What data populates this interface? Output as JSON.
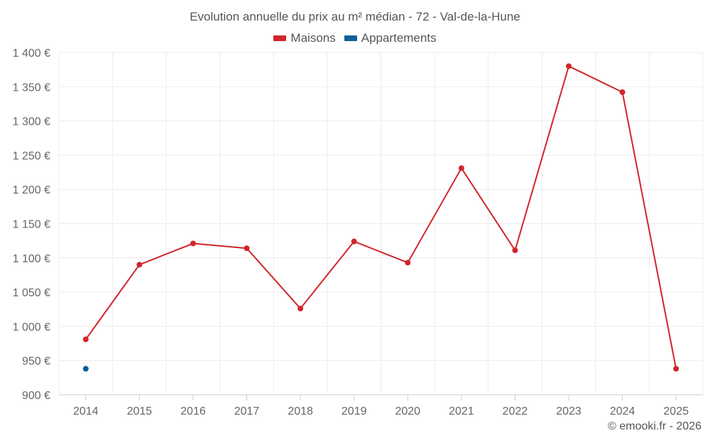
{
  "chart_data": {
    "type": "line",
    "title": "Evolution annuelle du prix au m² médian - 72 - Val-de-la-Hune",
    "categories": [
      "2014",
      "2015",
      "2016",
      "2017",
      "2018",
      "2019",
      "2020",
      "2021",
      "2022",
      "2023",
      "2024",
      "2025"
    ],
    "series": [
      {
        "name": "Maisons",
        "color": "#d0262b",
        "values": [
          981,
          1090,
          1121,
          1114,
          1026,
          1124,
          1093,
          1231,
          1111,
          1380,
          1342,
          938
        ]
      },
      {
        "name": "Appartements",
        "color": "#0b6196",
        "values": [
          938,
          null,
          null,
          null,
          null,
          null,
          null,
          null,
          null,
          null,
          null,
          null
        ]
      }
    ],
    "ylim": [
      900,
      1400
    ],
    "yticks": [
      900,
      950,
      1000,
      1050,
      1100,
      1150,
      1200,
      1250,
      1300,
      1350,
      1400
    ],
    "ytick_labels": [
      "900 €",
      "950 €",
      "1 000 €",
      "1 050 €",
      "1 100 €",
      "1 150 €",
      "1 200 €",
      "1 250 €",
      "1 300 €",
      "1 350 €",
      "1 400 €"
    ],
    "grid": true,
    "legend_position": "top-center"
  },
  "credit": "© emooki.fr - 2026"
}
